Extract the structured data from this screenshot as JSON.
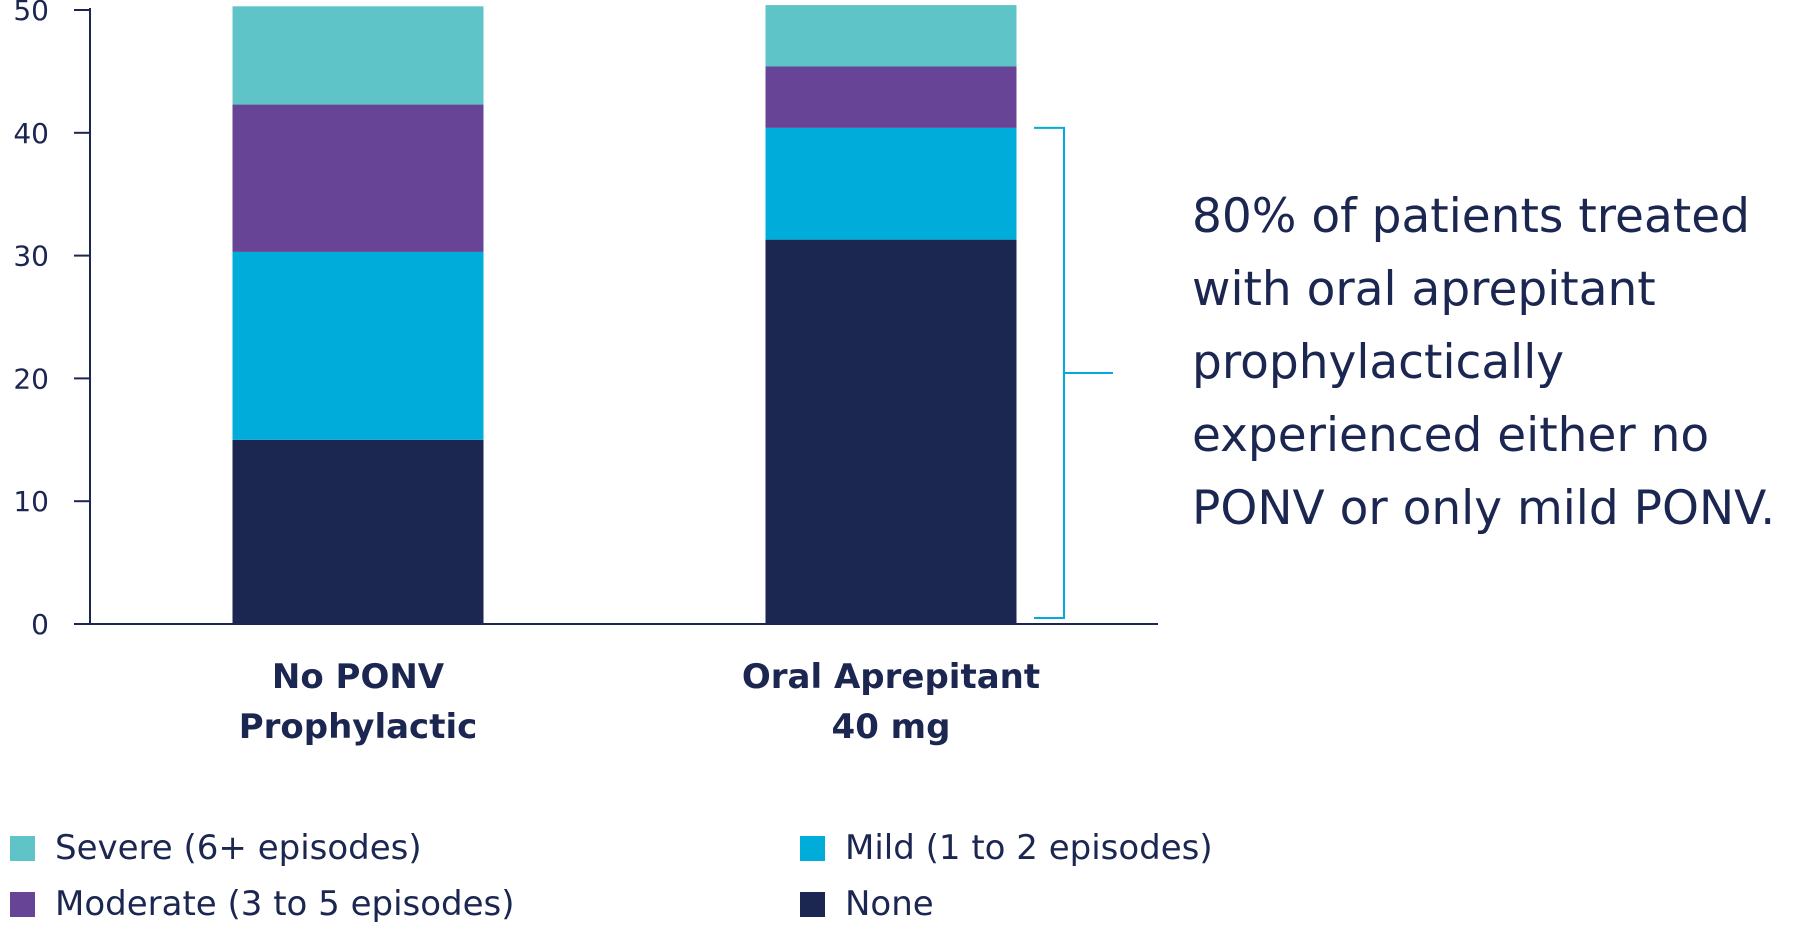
{
  "chart_data": {
    "type": "bar",
    "stacked": true,
    "categories": [
      [
        "No PONV",
        "Prophylactic"
      ],
      [
        "Oral Aprepitant",
        "40 mg"
      ]
    ],
    "series": [
      {
        "name": "None",
        "color": "#1b2651",
        "values": [
          15,
          31.3
        ]
      },
      {
        "name": "Mild (1 to 2 episodes)",
        "color": "#00acd9",
        "values": [
          15.3,
          9.1
        ]
      },
      {
        "name": "Moderate (3 to 5 episodes)",
        "color": "#674496",
        "values": [
          12,
          5
        ]
      },
      {
        "name": "Severe (6+ episodes)",
        "color": "#5fc4c8",
        "values": [
          8,
          5
        ]
      }
    ],
    "ylim": [
      0,
      50
    ],
    "yticks": [
      0,
      10,
      20,
      30,
      40,
      50
    ],
    "legend_order": [
      "Severe (6+ episodes)",
      "Mild (1 to 2 episodes)",
      "Moderate (3 to 5 episodes)",
      "None"
    ],
    "bracket": {
      "from": 0,
      "to": 40.4,
      "color": "#00acd9"
    },
    "annotation_lines": [
      "80% of patients treated",
      "with oral aprepitant",
      "prophylactically",
      "experienced either no",
      "PONV or only mild PONV."
    ]
  }
}
